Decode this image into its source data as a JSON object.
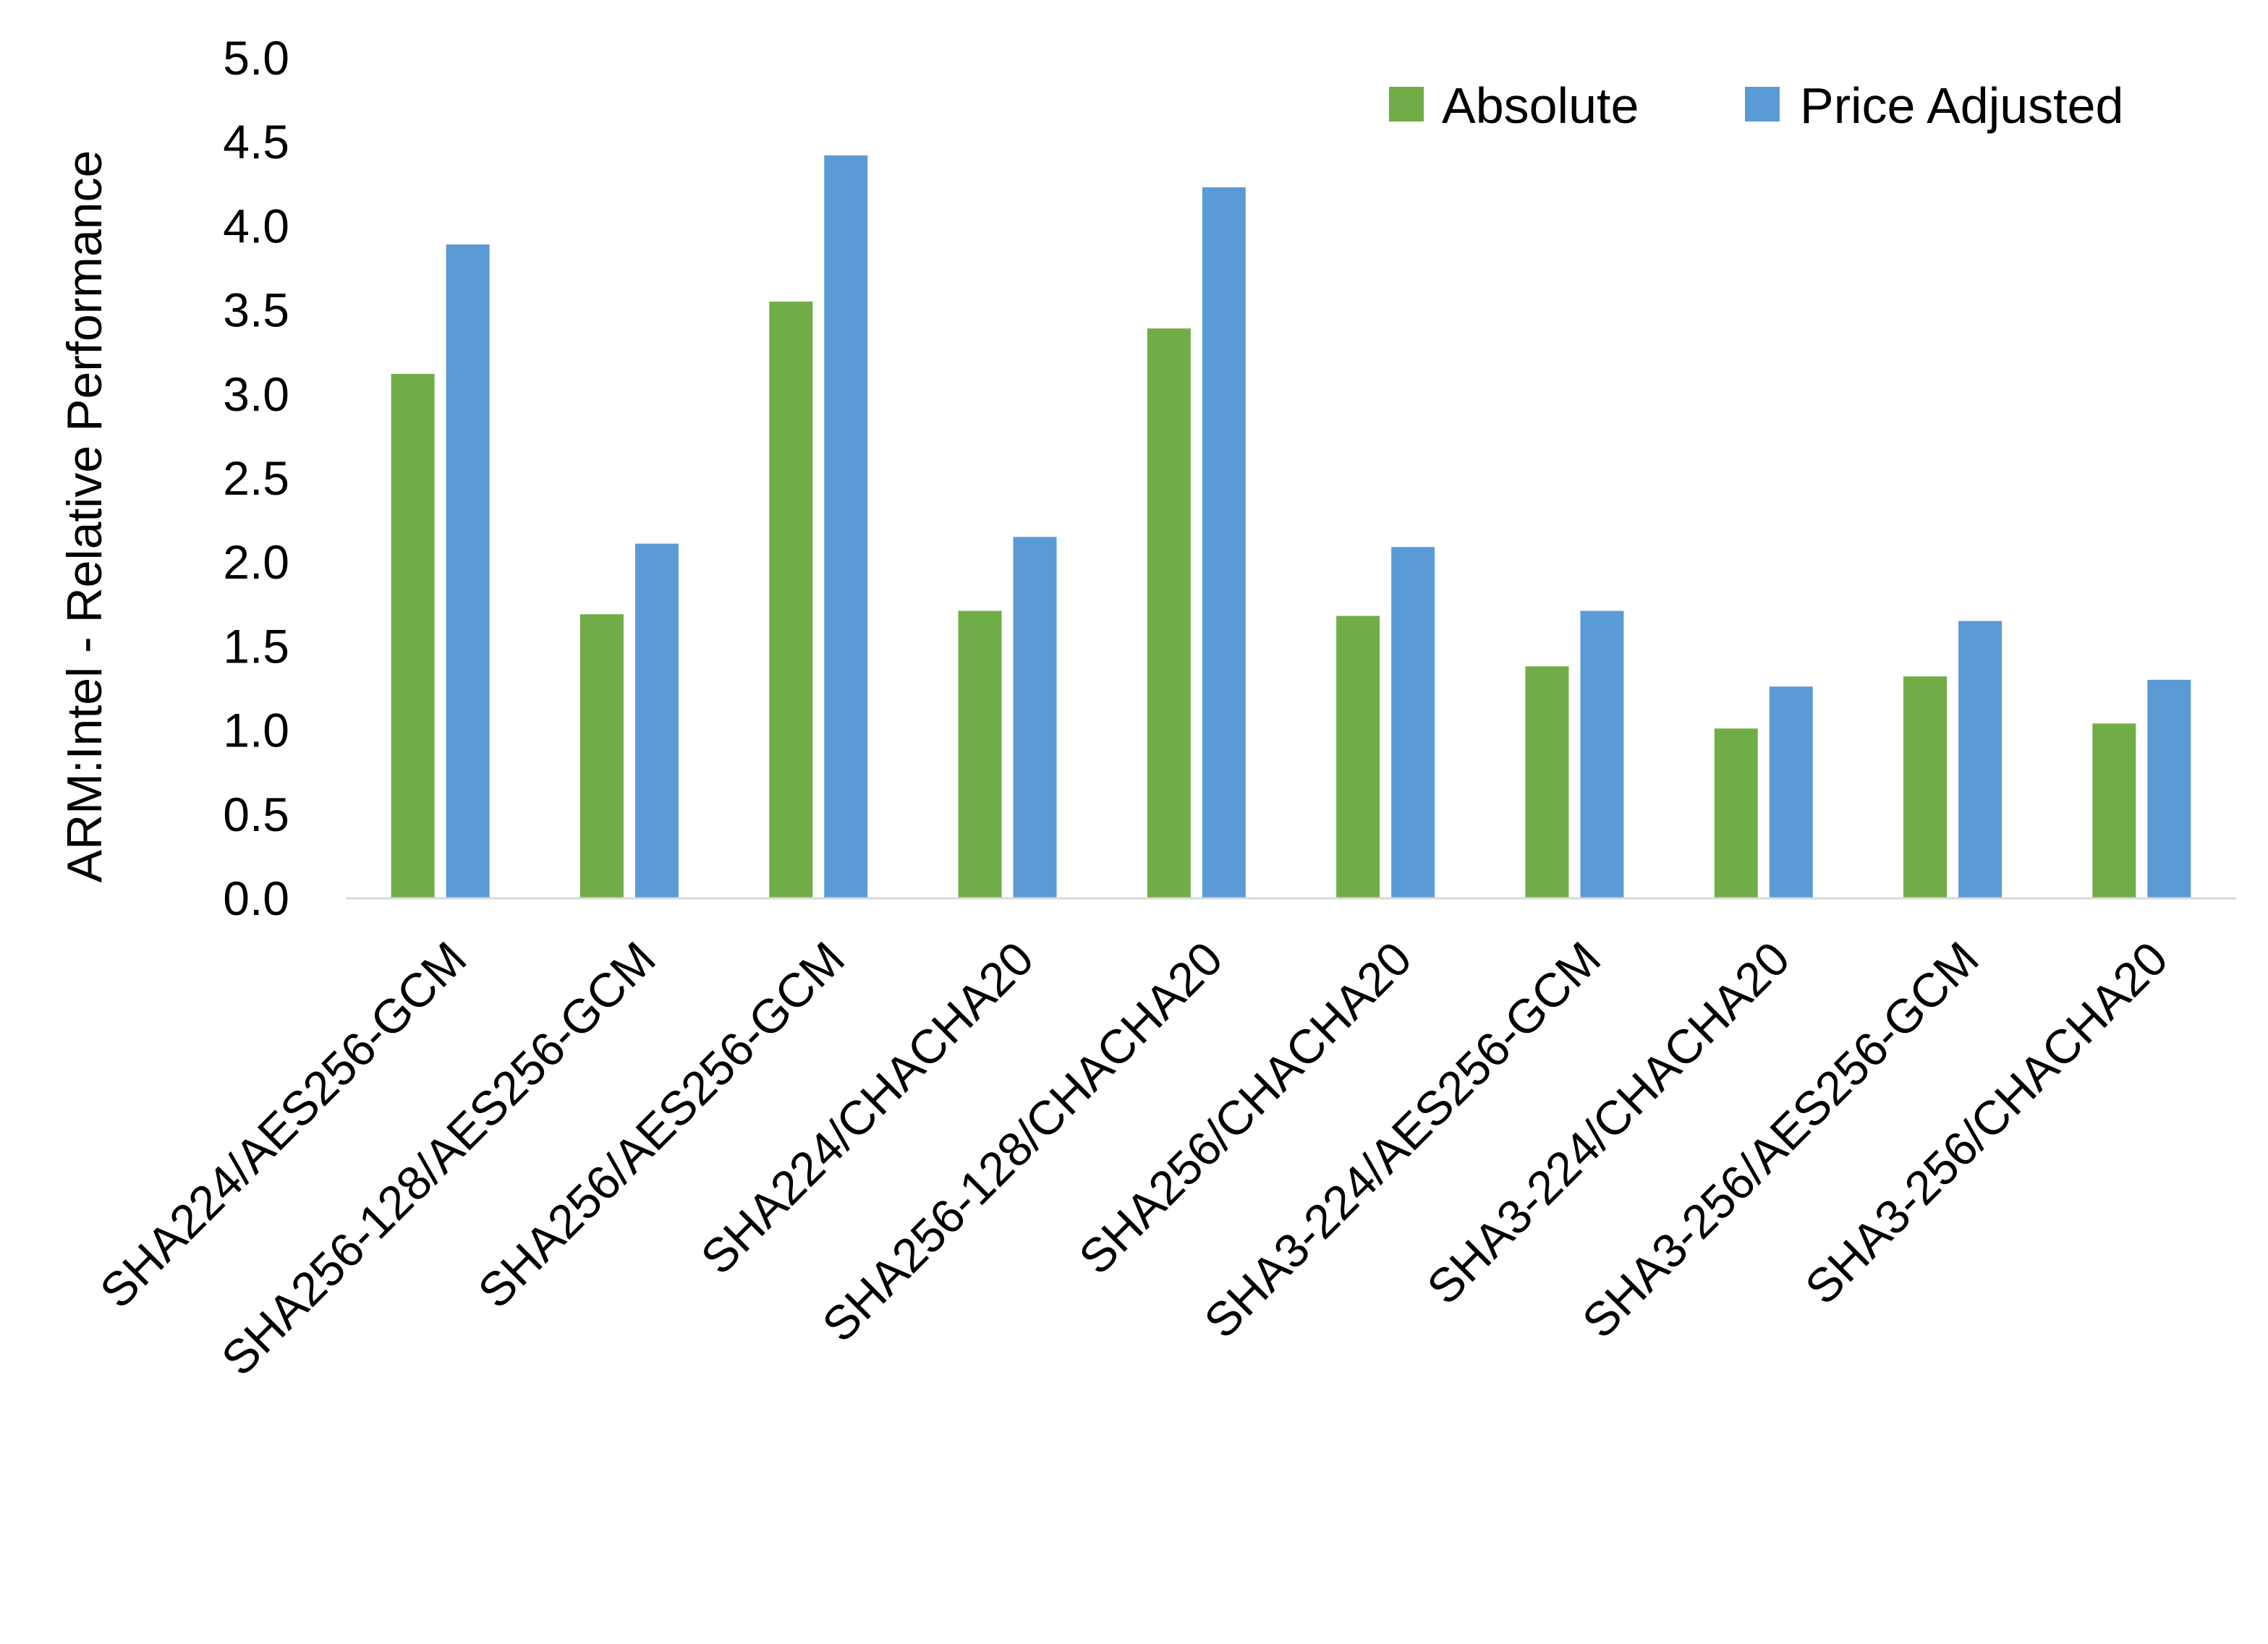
{
  "chart_data": {
    "type": "bar",
    "title": "",
    "xlabel": "",
    "ylabel": "ARM:Intel - Relative Performance",
    "ylim": [
      0,
      5
    ],
    "yticks": [
      "0.0",
      "0.5",
      "1.0",
      "1.5",
      "2.0",
      "2.5",
      "3.0",
      "3.5",
      "4.0",
      "4.5",
      "5.0"
    ],
    "grid": false,
    "legend_position": "top-right",
    "categories": [
      "SHA224/AES256-GCM",
      "SHA256-128/AES256-GCM",
      "SHA256/AES256-GCM",
      "SHA224/CHACHA20",
      "SHA256-128/CHACHA20",
      "SHA256/CHACHA20",
      "SHA3-224/AES256-GCM",
      "SHA3-224/CHACHA20",
      "SHA3-256/AES256-GCM",
      "SHA3-256/CHACHA20"
    ],
    "series": [
      {
        "name": "Absolute",
        "color": "#70AD47",
        "values": [
          3.12,
          1.69,
          3.55,
          1.71,
          3.39,
          1.68,
          1.38,
          1.01,
          1.32,
          1.04
        ]
      },
      {
        "name": "Price Adjusted",
        "color": "#5B9BD5",
        "values": [
          3.89,
          2.11,
          4.42,
          2.15,
          4.23,
          2.09,
          1.71,
          1.26,
          1.65,
          1.3
        ]
      }
    ]
  }
}
